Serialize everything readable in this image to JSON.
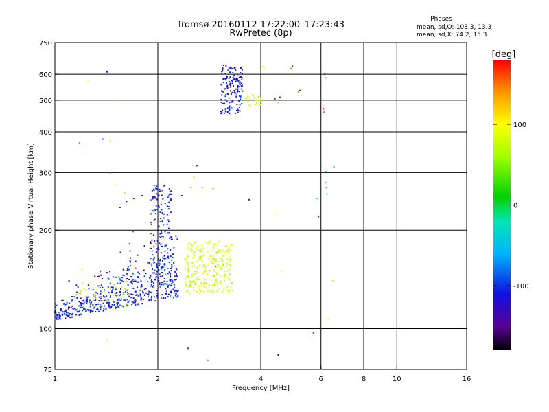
{
  "chart_data": {
    "type": "scatter",
    "title": "Tromsø 20160112 17:22:00–17:23:43",
    "subtitle": "RwPretec (8p)",
    "phases": {
      "heading": "Phases",
      "line_o": "mean, sd,O:-103.3, 13.3",
      "line_x": "mean, sd,X:  74.2, 15.3"
    },
    "xlabel": "Frequency [MHz]",
    "ylabel": "Stationary phase Virtual Height [km]",
    "x_scale": "log",
    "y_scale": "log",
    "xlim": [
      1,
      16
    ],
    "ylim": [
      75,
      750
    ],
    "x_ticks": [
      {
        "value": 1,
        "label": "1"
      },
      {
        "value": 2,
        "label": "2"
      },
      {
        "value": 4,
        "label": "4"
      },
      {
        "value": 6,
        "label": "6"
      },
      {
        "value": 8,
        "label": "8"
      },
      {
        "value": 10,
        "label": "10"
      },
      {
        "value": 16,
        "label": "16"
      }
    ],
    "y_ticks": [
      {
        "value": 75,
        "label": "75"
      },
      {
        "value": 100,
        "label": "100"
      },
      {
        "value": 200,
        "label": "200"
      },
      {
        "value": 300,
        "label": "300"
      },
      {
        "value": 400,
        "label": "400"
      },
      {
        "value": 500,
        "label": "500"
      },
      {
        "value": 600,
        "label": "600"
      },
      {
        "value": 750,
        "label": "750"
      }
    ],
    "grid_x": [
      2,
      4,
      6,
      8,
      10
    ],
    "grid_y": [
      100,
      200,
      300,
      400,
      500,
      600
    ],
    "grid": true,
    "colorbar": {
      "label": "[deg]",
      "range": [
        -180,
        180
      ],
      "ticks": [
        {
          "value": 100,
          "label": "100"
        },
        {
          "value": 0,
          "label": "0"
        },
        {
          "value": -100,
          "label": "-100"
        }
      ],
      "stops": [
        {
          "value": -180,
          "color": "#000000"
        },
        {
          "value": -150,
          "color": "#5a0096"
        },
        {
          "value": -110,
          "color": "#1010e0"
        },
        {
          "value": -60,
          "color": "#00b4ff"
        },
        {
          "value": -20,
          "color": "#00e6b4"
        },
        {
          "value": 10,
          "color": "#00d200"
        },
        {
          "value": 60,
          "color": "#a0ff00"
        },
        {
          "value": 100,
          "color": "#ffff00"
        },
        {
          "value": 140,
          "color": "#ff9600"
        },
        {
          "value": 180,
          "color": "#ff0000"
        }
      ]
    },
    "clusters": [
      {
        "name": "blue-lower-branch",
        "phase_mean": -105,
        "phase_sd": 15,
        "f_range": [
          1.0,
          2.3
        ],
        "h_base": [
          106,
          125
        ],
        "h_spread": 0.09,
        "n": 520
      },
      {
        "name": "blue-upper-branch",
        "phase_mean": -105,
        "phase_sd": 15,
        "f_range": [
          1.9,
          2.2
        ],
        "h_range": [
          135,
          275
        ],
        "n": 140
      },
      {
        "name": "yellow-lower-branch",
        "phase_mean": 80,
        "phase_sd": 12,
        "f_range": [
          2.4,
          3.3
        ],
        "h_range": [
          128,
          185
        ],
        "n": 260
      },
      {
        "name": "yellow-low-freq",
        "phase_mean": 80,
        "phase_sd": 12,
        "f_range": [
          1.15,
          1.65
        ],
        "h_range": [
          115,
          140
        ],
        "n": 45
      },
      {
        "name": "blue-f-region",
        "phase_mean": -110,
        "phase_sd": 12,
        "f_range": [
          3.05,
          3.55
        ],
        "h_range": [
          455,
          640
        ],
        "n": 150
      },
      {
        "name": "yellow-f-region",
        "phase_mean": 80,
        "phase_sd": 10,
        "f_range": [
          3.6,
          4.05
        ],
        "h_range": [
          480,
          520
        ],
        "n": 25
      }
    ],
    "points": [
      {
        "x": 1.42,
        "y": 610,
        "phase": -110
      },
      {
        "x": 1.25,
        "y": 570,
        "phase": 95
      },
      {
        "x": 1.52,
        "y": 500,
        "phase": 40
      },
      {
        "x": 1.38,
        "y": 380,
        "phase": -100
      },
      {
        "x": 1.45,
        "y": 375,
        "phase": 130
      },
      {
        "x": 1.18,
        "y": 370,
        "phase": 20
      },
      {
        "x": 1.45,
        "y": 300,
        "phase": -90
      },
      {
        "x": 1.55,
        "y": 235,
        "phase": -110
      },
      {
        "x": 1.62,
        "y": 245,
        "phase": -110
      },
      {
        "x": 1.7,
        "y": 250,
        "phase": -100
      },
      {
        "x": 1.8,
        "y": 255,
        "phase": -110
      },
      {
        "x": 1.95,
        "y": 265,
        "phase": -110
      },
      {
        "x": 1.5,
        "y": 275,
        "phase": 80
      },
      {
        "x": 1.6,
        "y": 260,
        "phase": 60
      },
      {
        "x": 2.35,
        "y": 255,
        "phase": -100
      },
      {
        "x": 2.5,
        "y": 270,
        "phase": 140
      },
      {
        "x": 2.6,
        "y": 315,
        "phase": -120
      },
      {
        "x": 2.55,
        "y": 290,
        "phase": 110
      },
      {
        "x": 2.9,
        "y": 268,
        "phase": 140
      },
      {
        "x": 3.7,
        "y": 248,
        "phase": -130
      },
      {
        "x": 4.45,
        "y": 225,
        "phase": 100
      },
      {
        "x": 4.6,
        "y": 150,
        "phase": 100
      },
      {
        "x": 4.5,
        "y": 83,
        "phase": -110
      },
      {
        "x": 2.45,
        "y": 87,
        "phase": -100
      },
      {
        "x": 2.8,
        "y": 80,
        "phase": 150
      },
      {
        "x": 1.42,
        "y": 92,
        "phase": 100
      },
      {
        "x": 5.7,
        "y": 97,
        "phase": 170
      },
      {
        "x": 1.2,
        "y": 152,
        "phase": 100
      },
      {
        "x": 1.1,
        "y": 140,
        "phase": -120
      },
      {
        "x": 5.9,
        "y": 220,
        "phase": -110
      },
      {
        "x": 6.15,
        "y": 600,
        "phase": -100
      },
      {
        "x": 6.2,
        "y": 585,
        "phase": 40
      },
      {
        "x": 6.1,
        "y": 470,
        "phase": 160
      },
      {
        "x": 6.12,
        "y": 460,
        "phase": 150
      },
      {
        "x": 6.2,
        "y": 302,
        "phase": -40
      },
      {
        "x": 6.18,
        "y": 280,
        "phase": -30
      },
      {
        "x": 6.22,
        "y": 270,
        "phase": -50
      },
      {
        "x": 6.25,
        "y": 258,
        "phase": -30
      },
      {
        "x": 5.85,
        "y": 250,
        "phase": -50
      },
      {
        "x": 6.55,
        "y": 312,
        "phase": -60
      },
      {
        "x": 6.5,
        "y": 140,
        "phase": 110
      },
      {
        "x": 6.3,
        "y": 107,
        "phase": 100
      },
      {
        "x": 4.55,
        "y": 510,
        "phase": -110
      },
      {
        "x": 4.4,
        "y": 505,
        "phase": -100
      },
      {
        "x": 4.5,
        "y": 490,
        "phase": 110
      },
      {
        "x": 4.95,
        "y": 635,
        "phase": -100
      },
      {
        "x": 4.9,
        "y": 625,
        "phase": 150
      },
      {
        "x": 5.2,
        "y": 535,
        "phase": -110
      },
      {
        "x": 5.25,
        "y": 540,
        "phase": 90
      },
      {
        "x": 5.15,
        "y": 530,
        "phase": 30
      },
      {
        "x": 4.05,
        "y": 635,
        "phase": 100
      },
      {
        "x": 4.1,
        "y": 625,
        "phase": 110
      },
      {
        "x": 3.45,
        "y": 595,
        "phase": 90
      },
      {
        "x": 2.7,
        "y": 270,
        "phase": 140
      },
      {
        "x": 2.95,
        "y": 155,
        "phase": 170
      }
    ]
  }
}
